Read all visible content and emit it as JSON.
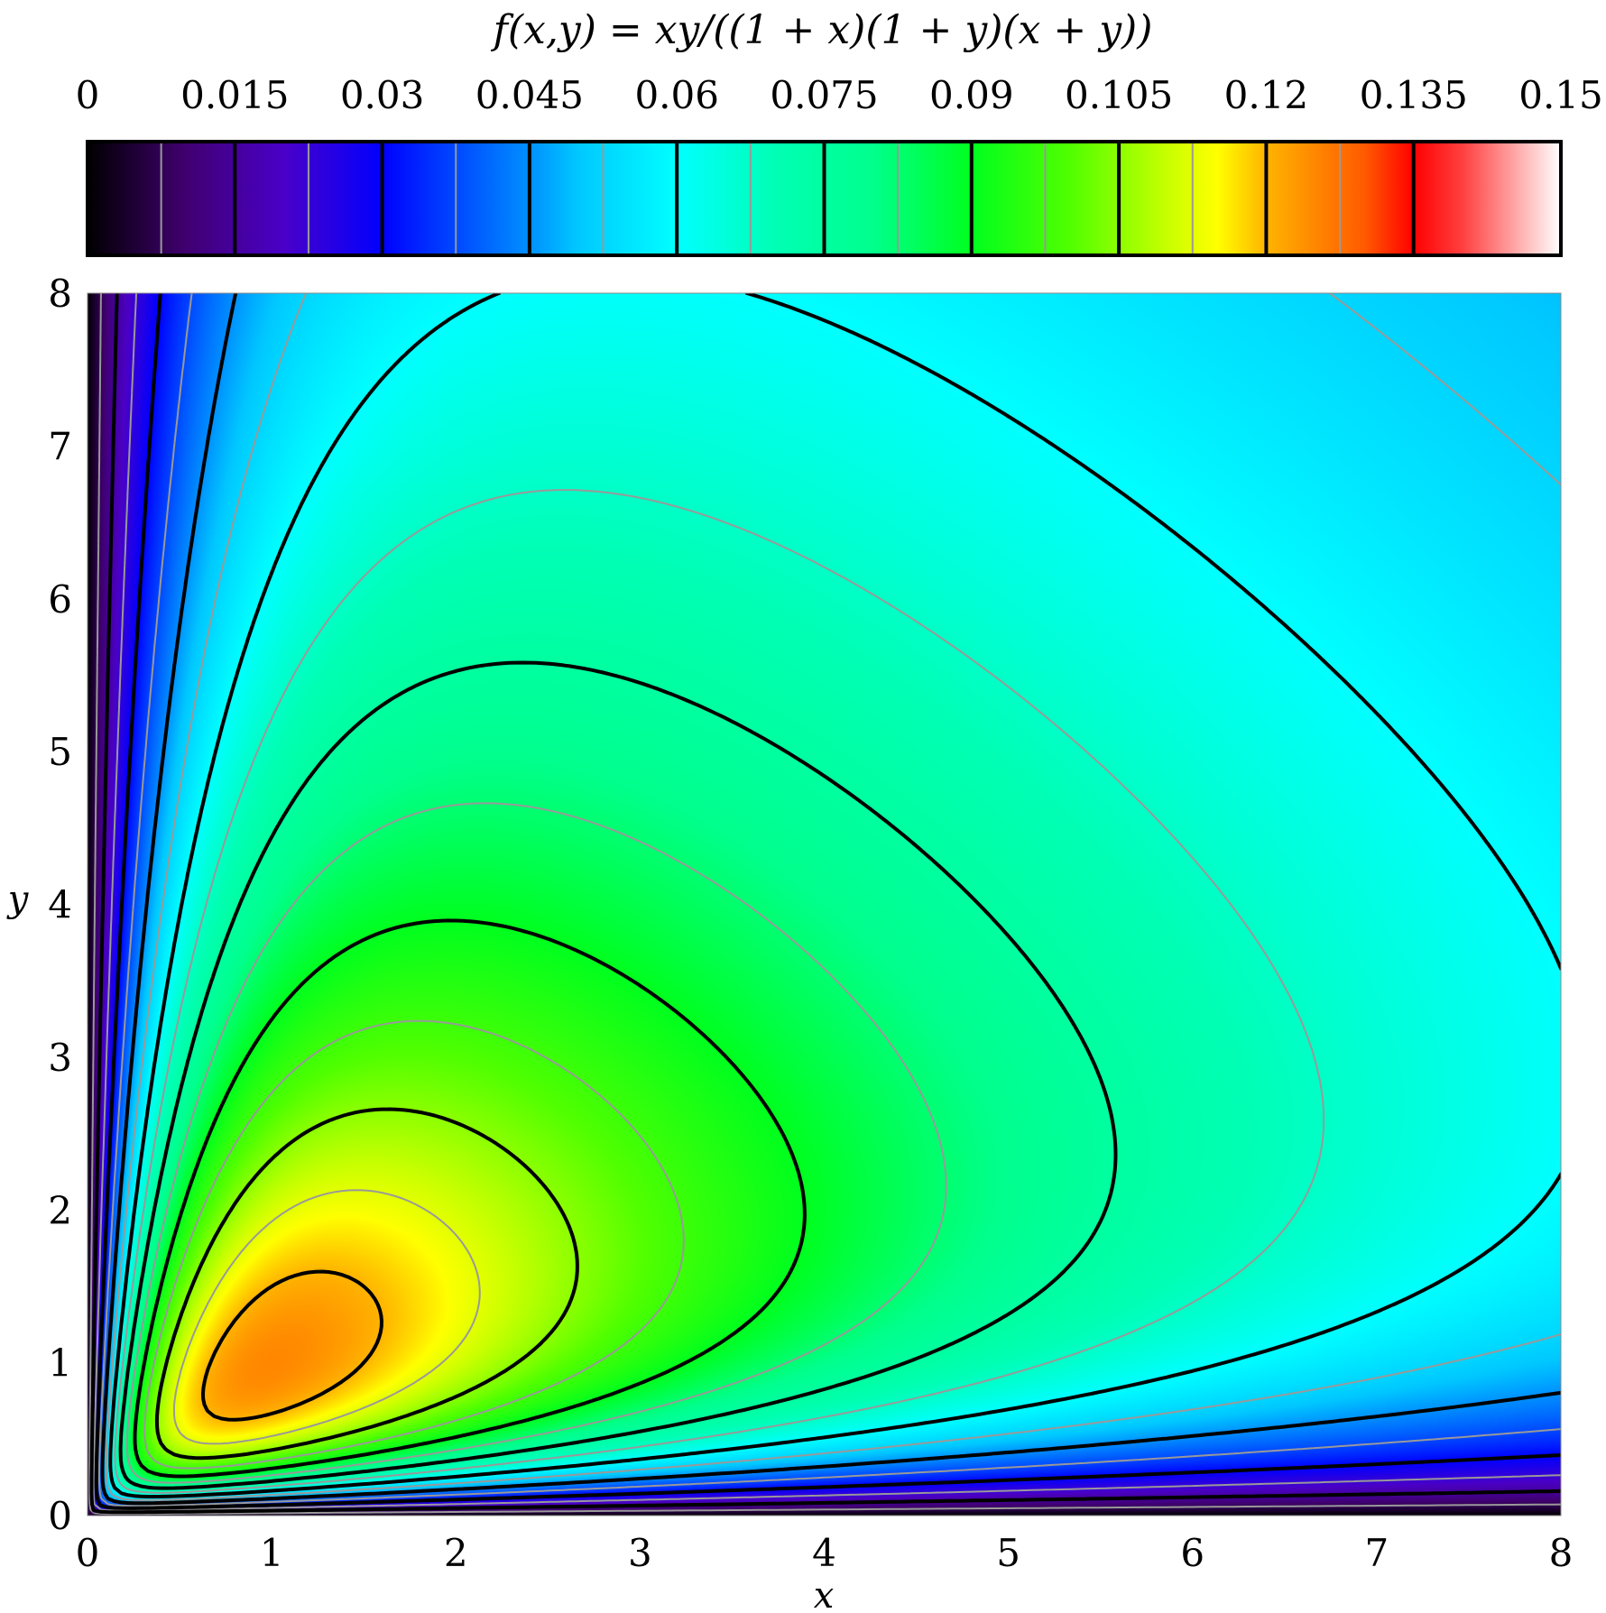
{
  "chart_data": {
    "type": "heatmap",
    "title": "f(x,y) = xy/((1 + x)(1 + y)(x + y))",
    "xlabel": "x",
    "ylabel": "y",
    "xlim": [
      0,
      8
    ],
    "ylim": [
      0,
      8
    ],
    "x_ticks": [
      "0",
      "1",
      "2",
      "3",
      "4",
      "5",
      "6",
      "7",
      "8"
    ],
    "y_ticks": [
      "0",
      "1",
      "2",
      "3",
      "4",
      "5",
      "6",
      "7",
      "8"
    ],
    "colorbar": {
      "placement": "top",
      "range": [
        0,
        0.15
      ],
      "ticks": [
        "0",
        "0.015",
        "0.03",
        "0.045",
        "0.06",
        "0.075",
        "0.09",
        "0.105",
        "0.12",
        "0.135",
        "0.15"
      ],
      "colormap": [
        [
          0.0,
          "#000000"
        ],
        [
          0.0667,
          "#400070"
        ],
        [
          0.1333,
          "#4a00c8"
        ],
        [
          0.2,
          "#0000ff"
        ],
        [
          0.3,
          "#0090ff"
        ],
        [
          0.3333,
          "#00c8ff"
        ],
        [
          0.4,
          "#00ffff"
        ],
        [
          0.4667,
          "#00ffb4"
        ],
        [
          0.5333,
          "#00ff8c"
        ],
        [
          0.6,
          "#00ff1e"
        ],
        [
          0.6667,
          "#50ff00"
        ],
        [
          0.7333,
          "#c8ff00"
        ],
        [
          0.7667,
          "#ffff00"
        ],
        [
          0.8,
          "#ffb400"
        ],
        [
          0.8667,
          "#ff5a00"
        ],
        [
          0.9,
          "#ff0000"
        ],
        [
          0.9333,
          "#ff4040"
        ],
        [
          1.0,
          "#ffffff"
        ]
      ]
    },
    "contour_levels_major": [
      0.015,
      0.03,
      0.045,
      0.06,
      0.075,
      0.09,
      0.105,
      0.12,
      0.135
    ],
    "contour_levels_minor": [
      0.0075,
      0.0225,
      0.0375,
      0.0525,
      0.0675,
      0.0825,
      0.0975,
      0.1125,
      0.1275
    ],
    "colors": {
      "major_contour": "#000000",
      "minor_contour": "#999999",
      "frame": "#000000"
    }
  }
}
